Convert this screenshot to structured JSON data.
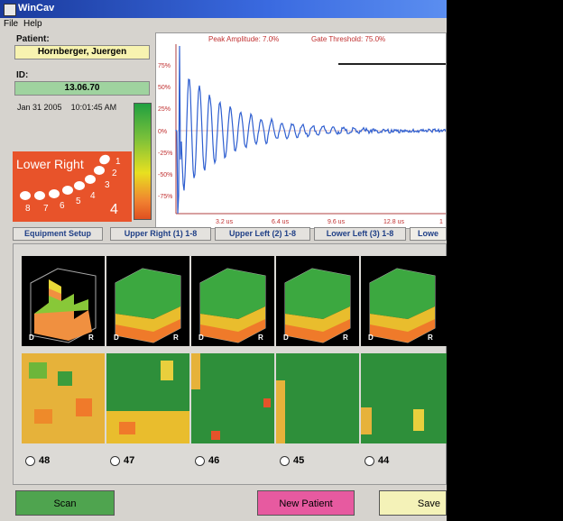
{
  "window": {
    "title": "WinCav"
  },
  "menu": [
    {
      "label": "File"
    },
    {
      "label": "Help"
    }
  ],
  "patient": {
    "label": "Patient:",
    "name": "Hornberger, Juergen",
    "id_label": "ID:",
    "id_value": "13.06.70",
    "date": "Jan 31 2005",
    "time": "10:01:45 AM"
  },
  "quadrant": {
    "title": "Lower Right",
    "numbers": [
      "1",
      "2",
      "3",
      "4",
      "5",
      "6",
      "7",
      "8"
    ],
    "big": "4"
  },
  "waveform": {
    "peak_label": "Peak Amplitude: 7.0%",
    "gate_label": "Gate Threshold: 75.0%",
    "y_ticks": [
      "75%",
      "50%",
      "25%",
      "0%",
      "-25%",
      "-50%",
      "-75%"
    ],
    "x_ticks": [
      "3.2 us",
      "6.4 us",
      "9.6 us",
      "12.8 us",
      "1"
    ]
  },
  "tabs": [
    {
      "label": "Equipment Setup"
    },
    {
      "label": "Upper Right (1) 1-8"
    },
    {
      "label": "Upper Left (2) 1-8"
    },
    {
      "label": "Lower Left (3) 1-8"
    },
    {
      "label": "Lowe"
    }
  ],
  "teeth": [
    {
      "number": "48",
      "d": "D",
      "r": "R"
    },
    {
      "number": "47",
      "d": "D",
      "r": "R"
    },
    {
      "number": "46",
      "d": "D",
      "r": "R"
    },
    {
      "number": "45",
      "d": "D",
      "r": "R"
    },
    {
      "number": "44",
      "d": "D",
      "r": "R"
    }
  ],
  "buttons": {
    "scan": "Scan",
    "new_patient": "New Patient",
    "save": "Save"
  },
  "colors": {
    "scan": "#4fa44f",
    "new_patient": "#e75aa0",
    "save": "#f4f2b8",
    "field_yellow": "#f7f3b0",
    "field_green": "#9fd39f"
  }
}
